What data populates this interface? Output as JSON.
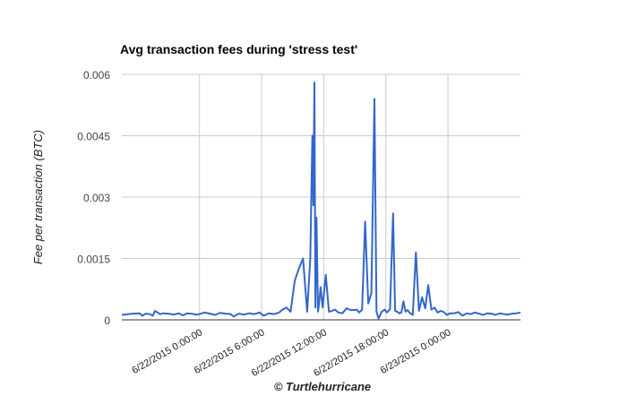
{
  "chart_data": {
    "type": "line",
    "title": "Avg transaction fees during 'stress test'",
    "xlabel": "© Turtlehurricane",
    "ylabel": "Fee per transaction (BTC)",
    "ylim": [
      0,
      0.006
    ],
    "yticks": [
      0,
      0.0015,
      0.003,
      0.0045,
      0.006
    ],
    "ytick_labels": [
      "0",
      "0.0015",
      "0.003",
      "0.0045",
      "0.006"
    ],
    "xlim_hours": [
      -7.5,
      31
    ],
    "xticks_hours": [
      0,
      6,
      12,
      18,
      24
    ],
    "xtick_labels": [
      "6/22/2015 0:00:00",
      "6/22/2015 6:00:00",
      "6/22/2015 12:00:00",
      "6/22/2015 18:00:00",
      "6/23/2015 0:00:00"
    ],
    "grid": true,
    "line_color": "#3366cc",
    "series": [
      {
        "x": [
          -7.5,
          -6.5,
          -5.8,
          -5.5,
          -5.2,
          -4.8,
          -4.5,
          -4.3,
          -3.8,
          -3.5,
          -3.0,
          -2.5,
          -2.0,
          -1.6,
          -1.2,
          -0.8,
          -0.3,
          0,
          0.5,
          1.0,
          1.5,
          2.0,
          2.5,
          3.0,
          3.3,
          3.8,
          4.3,
          4.8,
          5.3,
          5.8,
          6.2,
          6.7,
          7.2,
          7.7,
          8.0,
          8.4,
          8.8,
          9.2,
          9.6,
          10.0,
          10.4,
          10.7,
          10.9,
          11.0,
          11.1,
          11.2,
          11.3,
          11.45,
          11.55,
          11.7,
          11.9,
          12.2,
          12.5,
          12.8,
          13.1,
          13.4,
          13.8,
          14.2,
          14.6,
          15.0,
          15.2,
          15.4,
          15.7,
          16.0,
          16.3,
          16.6,
          16.9,
          17.1,
          17.3,
          17.6,
          17.9,
          18.1,
          18.4,
          18.7,
          18.9,
          19.1,
          19.3,
          19.5,
          19.7,
          19.9,
          20.1,
          20.3,
          20.6,
          20.9,
          21.2,
          21.5,
          21.8,
          22.1,
          22.4,
          22.7,
          23.0,
          23.3,
          23.6,
          23.9,
          24.2,
          24.6,
          25.0,
          25.4,
          25.8,
          26.2,
          26.6,
          27.0,
          27.4,
          27.8,
          28.2,
          28.6,
          29.0,
          29.4,
          29.8,
          30.2,
          30.6,
          31.0
        ],
        "y": [
          0.00012,
          0.00015,
          0.00016,
          0.0001,
          0.00015,
          0.00014,
          0.0001,
          0.00022,
          0.00014,
          0.00016,
          0.00015,
          0.00013,
          0.00016,
          0.00011,
          0.00016,
          0.00015,
          0.00013,
          0.00014,
          0.00018,
          0.00015,
          0.00012,
          0.00017,
          0.00015,
          0.00014,
          8e-05,
          0.00015,
          0.00013,
          0.00016,
          0.00014,
          0.00018,
          0.0001,
          0.00016,
          0.00014,
          0.00018,
          0.00025,
          0.0003,
          0.0002,
          0.00095,
          0.00125,
          0.0015,
          0.0002,
          0.0015,
          0.0045,
          0.0028,
          0.0058,
          0.0003,
          0.0025,
          0.0002,
          0.0004,
          0.0008,
          0.0003,
          0.0011,
          0.0002,
          0.00022,
          0.00025,
          0.00018,
          0.00016,
          0.00028,
          0.00024,
          0.00024,
          0.00025,
          0.00018,
          0.00024,
          0.0024,
          0.0004,
          0.00065,
          0.0054,
          0.0002,
          3e-05,
          0.0002,
          0.00025,
          0.00018,
          0.00026,
          0.0026,
          0.00022,
          0.0002,
          0.00016,
          0.00018,
          0.00045,
          0.0002,
          0.00024,
          0.00017,
          0.00012,
          0.00165,
          0.00022,
          0.00055,
          0.00028,
          0.00085,
          0.00025,
          0.0003,
          0.00018,
          0.00022,
          0.00019,
          0.00012,
          0.00016,
          0.00016,
          0.00019,
          0.0001,
          0.00016,
          0.00014,
          0.00018,
          0.00015,
          0.00012,
          0.00016,
          0.00015,
          0.00012,
          0.00016,
          0.00014,
          0.00013,
          0.00015,
          0.00016,
          0.00018
        ]
      }
    ]
  }
}
